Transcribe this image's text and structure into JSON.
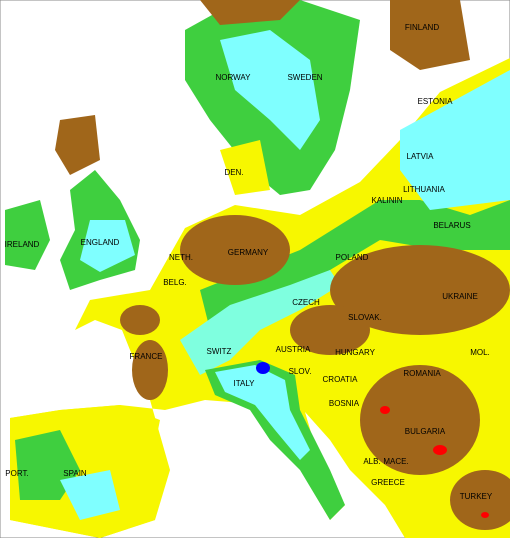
{
  "labels": [
    "FINLAND",
    "NORWAY",
    "SWEDEN",
    "ESTONIA",
    "LATVIA",
    "DEN.",
    "LITHUANIA",
    "KALININ",
    "IRELAND",
    "ENGLAND",
    "BELARUS",
    "NETH.",
    "GERMANY",
    "POLAND",
    "BELG.",
    "UKRAINE",
    "CZECH",
    "SLOVAK.",
    "FRANCE",
    "SWITZ",
    "AUSTRIA",
    "HUNGARY",
    "MOL.",
    "ROMANIA",
    "SLOV.",
    "CROATIA",
    "ITALY",
    "BOSNIA",
    "BULGARIA",
    "MACE.",
    "ALB.",
    "GREECE",
    "PORT.",
    "SPAIN",
    "TURKEY"
  ]
}
